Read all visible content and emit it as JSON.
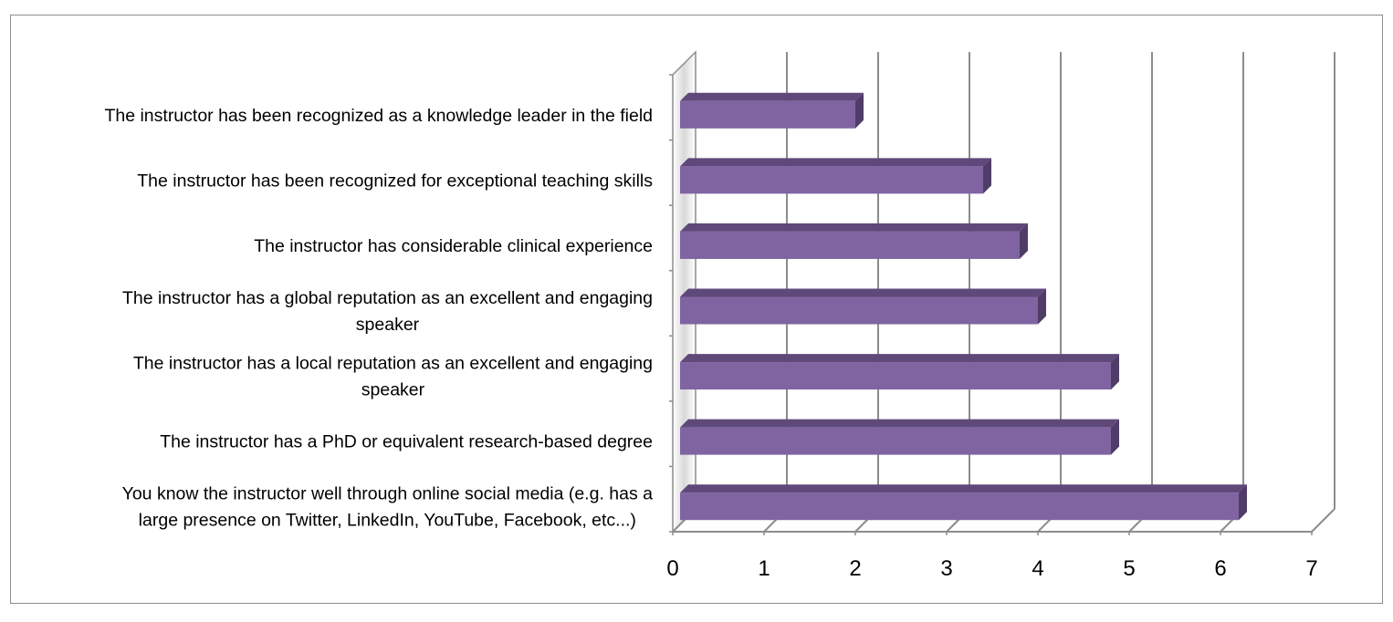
{
  "chart_data": {
    "type": "bar",
    "orientation": "horizontal",
    "style": "3d",
    "title": "",
    "xlabel": "",
    "ylabel": "",
    "categories": [
      [
        "The instructor has been recognized as a knowledge leader in the field"
      ],
      [
        "The instructor has been recognized for exceptional teaching skills"
      ],
      [
        "The instructor has considerable clinical experience"
      ],
      [
        "The instructor has a global reputation as an excellent and engaging",
        "speaker"
      ],
      [
        "The instructor has a local reputation as an excellent and engaging",
        "speaker"
      ],
      [
        "The instructor has a PhD or equivalent research-based degree"
      ],
      [
        "You know the instructor well through online social media (e.g. has a",
        "large presence on Twitter, LinkedIn, YouTube, Facebook, etc...)"
      ]
    ],
    "values": [
      2.0,
      3.4,
      3.8,
      4.0,
      4.8,
      4.8,
      6.2
    ],
    "xlim": [
      0,
      7
    ],
    "xticks": [
      "0",
      "1",
      "2",
      "3",
      "4",
      "5",
      "6",
      "7"
    ],
    "grid": true,
    "legend": "none",
    "colors": {
      "bar_front": "#8064a2",
      "bar_top": "#5f497a",
      "bar_side": "#4f3c67",
      "grid": "#8c8c8c",
      "wall": "#d9d9d9"
    }
  }
}
